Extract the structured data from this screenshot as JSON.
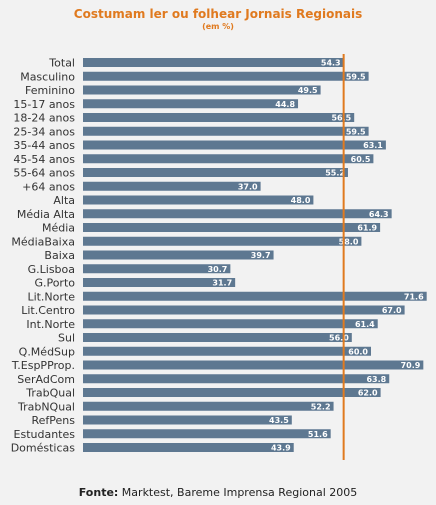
{
  "chart_data": {
    "type": "bar",
    "orientation": "horizontal",
    "title": "Costumam ler ou folhear Jornais Regionais",
    "subtitle": "(em %)",
    "categories": [
      "Total",
      "Masculino",
      "Feminino",
      "15-17 anos",
      "18-24 anos",
      "25-34 anos",
      "35-44 anos",
      "45-54 anos",
      "55-64 anos",
      "+64 anos",
      "Alta",
      "Média Alta",
      "Média",
      "MédiaBaixa",
      "Baixa",
      "G.Lisboa",
      "G.Porto",
      "Lit.Norte",
      "Lit.Centro",
      "Int.Norte",
      "Sul",
      "Q.MédSup",
      "T.EspPProp.",
      "SerAdCom",
      "TrabQual",
      "TrabNQual",
      "RefPens",
      "Estudantes",
      "Domésticas"
    ],
    "values": [
      54.3,
      59.5,
      49.5,
      44.8,
      56.5,
      59.5,
      63.1,
      60.5,
      55.2,
      37.0,
      48.0,
      64.3,
      61.9,
      58.0,
      39.7,
      30.7,
      31.7,
      71.6,
      67.0,
      61.4,
      56.0,
      60.0,
      70.9,
      63.8,
      62.0,
      52.2,
      43.5,
      51.6,
      43.9
    ],
    "value_labels": [
      "54.3",
      "59.5",
      "49.5",
      "44.8",
      "56.5",
      "59.5",
      "63.1",
      "60.5",
      "55.2",
      "37.0",
      "48.0",
      "64.3",
      "61.9",
      "58.0",
      "39.7",
      "30.7",
      "31.7",
      "71.6",
      "67.0",
      "61.4",
      "56.0",
      "60.0",
      "70.9",
      "63.8",
      "62.0",
      "52.2",
      "43.5",
      "51.6",
      "43.9"
    ],
    "reference_line": 54.3,
    "colors": {
      "bar": "#5e7891",
      "reference": "#e07a1f",
      "background": "#f2f2f2"
    }
  },
  "source": {
    "label": "Fonte:",
    "text": " Marktest, Bareme Imprensa Regional 2005"
  }
}
